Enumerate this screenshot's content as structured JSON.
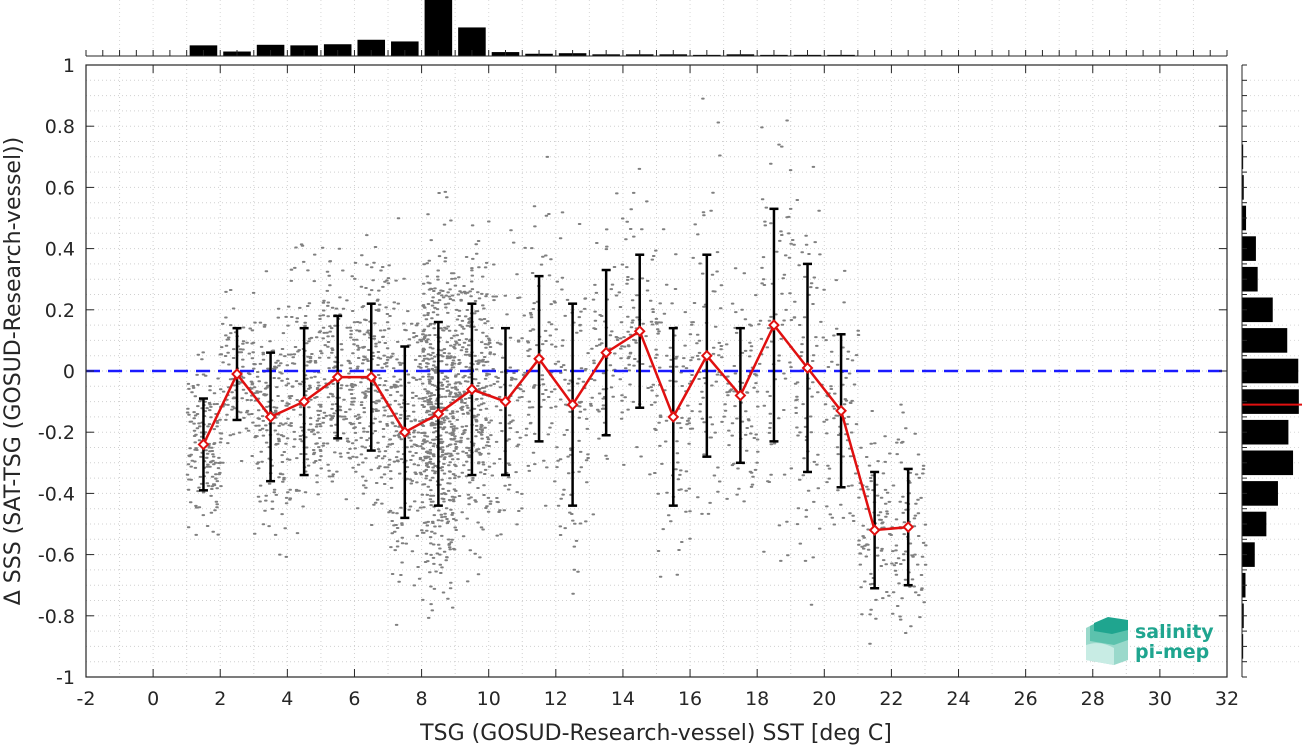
{
  "chart_data": {
    "type": "scatter",
    "xlabel": "TSG (GOSUD-Research-vessel) SST [deg C]",
    "ylabel": "Δ SSS (SAT-TSG (GOSUD-Research-vessel))",
    "xlim": [
      -2,
      32
    ],
    "ylim": [
      -1,
      1
    ],
    "xticks": [
      -2,
      0,
      2,
      4,
      6,
      8,
      10,
      12,
      14,
      16,
      18,
      20,
      22,
      24,
      26,
      28,
      30,
      32
    ],
    "yticks": [
      1,
      0.8,
      0.6,
      0.4,
      0.2,
      0,
      -0.2,
      -0.4,
      -0.6,
      -0.8,
      -1
    ],
    "xtick_labels": [
      "-2",
      "0",
      "2",
      "4",
      "6",
      "8",
      "10",
      "12",
      "14",
      "16",
      "18",
      "20",
      "22",
      "24",
      "26",
      "28",
      "30",
      "32"
    ],
    "ytick_labels": [
      "1",
      "0.8",
      "0.6",
      "0.4",
      "0.2",
      "0",
      "-0.2",
      "-0.4",
      "-0.6",
      "-0.8",
      "-1"
    ],
    "grid": true,
    "reference_line": {
      "y": 0,
      "style": "dashed",
      "color": "#1a1aff"
    },
    "binned_mean": {
      "color": "#e01010",
      "x": [
        1.5,
        2.5,
        3.5,
        4.5,
        5.5,
        6.5,
        7.5,
        8.5,
        9.5,
        10.5,
        11.5,
        12.5,
        13.5,
        14.5,
        15.5,
        16.5,
        17.5,
        18.5,
        19.5,
        20.5,
        21.5,
        22.5
      ],
      "y": [
        -0.24,
        -0.01,
        -0.15,
        -0.1,
        -0.02,
        -0.02,
        -0.2,
        -0.14,
        -0.06,
        -0.1,
        0.04,
        -0.11,
        0.06,
        0.13,
        -0.15,
        0.05,
        -0.08,
        0.15,
        0.01,
        -0.13,
        -0.52,
        -0.51
      ],
      "std": [
        0.15,
        0.15,
        0.21,
        0.24,
        0.2,
        0.24,
        0.28,
        0.3,
        0.28,
        0.24,
        0.27,
        0.33,
        0.27,
        0.25,
        0.29,
        0.33,
        0.22,
        0.38,
        0.34,
        0.25,
        0.19,
        0.19
      ]
    },
    "top_histogram": {
      "x": [
        1.5,
        2.5,
        3.5,
        4.5,
        5.5,
        6.5,
        7.5,
        8.5,
        9.5,
        10.5,
        11.5,
        12.5,
        13.5,
        14.5,
        15.5,
        16.5,
        17.5,
        18.5,
        19.5,
        20.5
      ],
      "values": [
        0.19,
        0.08,
        0.2,
        0.19,
        0.21,
        0.29,
        0.26,
        1.0,
        0.51,
        0.07,
        0.04,
        0.05,
        0.03,
        0.03,
        0.03,
        0.02,
        0.03,
        0.02,
        0.02,
        0.02
      ]
    },
    "right_histogram": {
      "y": [
        0.7,
        0.6,
        0.5,
        0.4,
        0.3,
        0.2,
        0.1,
        0.0,
        -0.1,
        -0.2,
        -0.3,
        -0.4,
        -0.5,
        -0.6,
        -0.7,
        -0.8,
        -0.9
      ],
      "values": [
        0.02,
        0.03,
        0.07,
        0.24,
        0.27,
        0.53,
        0.78,
        0.97,
        0.98,
        0.8,
        0.88,
        0.62,
        0.42,
        0.22,
        0.06,
        0.03,
        0.02
      ],
      "mean_line": -0.11
    },
    "scatter_color": "#808080"
  },
  "logo": {
    "line1": "salinity",
    "line2": "pi-mep",
    "color": "#1fa58f"
  }
}
